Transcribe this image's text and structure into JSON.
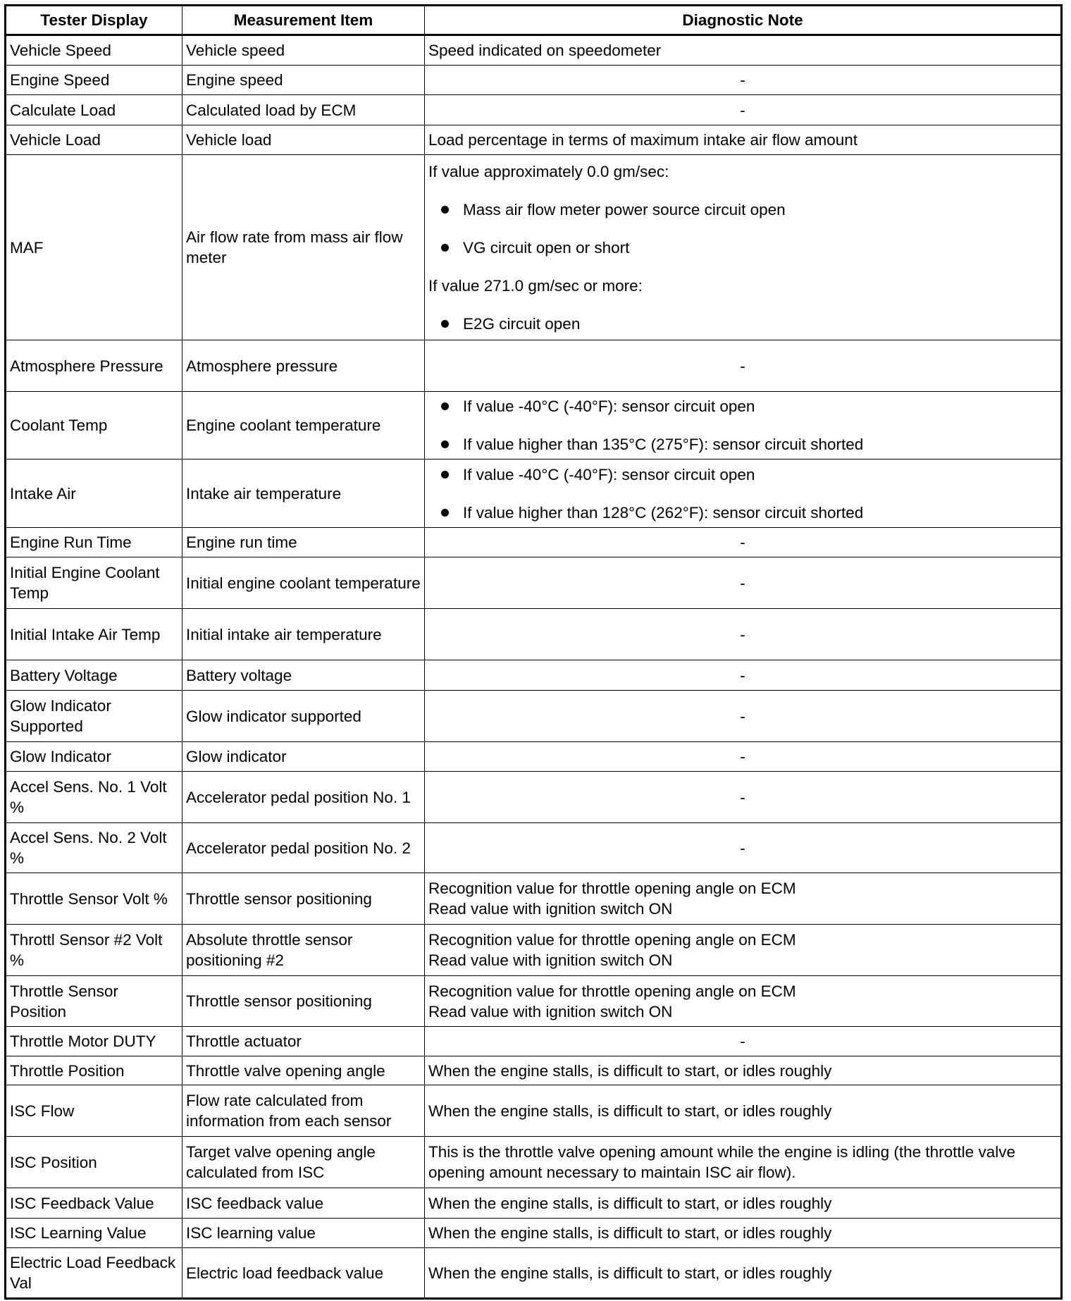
{
  "headers": [
    "Tester Display",
    "Measurement Item",
    "Diagnostic Note"
  ],
  "rows": [
    {
      "tester": "Vehicle Speed",
      "item": "Vehicle speed",
      "note": [
        "Speed indicated on speedometer"
      ]
    },
    {
      "tester": "Engine Speed",
      "item": "Engine speed",
      "note": [
        "-"
      ]
    },
    {
      "tester": "Calculate Load",
      "item": "Calculated load by ECM",
      "note": [
        "-"
      ]
    },
    {
      "tester": "Vehicle Load",
      "item": "Vehicle load",
      "note": [
        "Load percentage in terms of maximum intake air flow amount"
      ]
    },
    {
      "tester": "MAF",
      "item": "Air flow rate from mass air flow meter",
      "note": [
        {
          "text": "If value approximately 0.0 gm/sec:"
        },
        {
          "bullet": "Mass air flow meter power source circuit open"
        },
        {
          "bullet": "VG circuit open or short"
        },
        {
          "text": "If value 271.0 gm/sec or more:"
        },
        {
          "bullet": "E2G circuit open"
        }
      ]
    },
    {
      "tester": "Atmosphere Pressure",
      "item": "Atmosphere pressure",
      "note": [
        "-"
      ]
    },
    {
      "tester": "Coolant Temp",
      "item": "Engine coolant temperature",
      "note": [
        {
          "bullet": "If value -40°C (-40°F): sensor circuit open"
        },
        {
          "bullet": "If value higher than 135°C (275°F): sensor circuit shorted"
        }
      ]
    },
    {
      "tester": "Intake Air",
      "item": "Intake air temperature",
      "note": [
        {
          "bullet": "If value -40°C (-40°F): sensor circuit open"
        },
        {
          "bullet": "If value higher than 128°C (262°F): sensor circuit shorted"
        }
      ]
    },
    {
      "tester": "Engine Run Time",
      "item": "Engine run time",
      "note": [
        "-"
      ]
    },
    {
      "tester": "Initial Engine Coolant Temp",
      "item": "Initial engine coolant temperature",
      "note": [
        "-"
      ]
    },
    {
      "tester": "Initial Intake Air Temp",
      "item": "Initial intake air temperature",
      "note": [
        "-"
      ]
    },
    {
      "tester": "Battery Voltage",
      "item": "Battery voltage",
      "note": [
        "-"
      ]
    },
    {
      "tester": "Glow Indicator Supported",
      "item": "Glow indicator supported",
      "note": [
        "-"
      ]
    },
    {
      "tester": "Glow Indicator",
      "item": "Glow indicator",
      "note": [
        "-"
      ]
    },
    {
      "tester": "Accel Sens. No. 1 Volt %",
      "item": "Accelerator pedal position No. 1",
      "note": [
        "-"
      ]
    },
    {
      "tester": "Accel Sens. No. 2 Volt %",
      "item": "Accelerator pedal position No. 2",
      "note": [
        "-"
      ]
    },
    {
      "tester": "Throttle Sensor Volt %",
      "item": "Throttle sensor positioning",
      "note": [
        "Recognition value for throttle opening angle on ECM",
        "Read value with ignition switch ON"
      ]
    },
    {
      "tester": "Throttl Sensor #2 Volt %",
      "item": "Absolute throttle sensor positioning #2",
      "note": [
        "Recognition value for throttle opening angle on ECM",
        "Read value with ignition switch ON"
      ]
    },
    {
      "tester": "Throttle Sensor Position",
      "item": "Throttle sensor positioning",
      "note": [
        "Recognition value for throttle opening angle on ECM",
        "Read value with ignition switch ON"
      ]
    },
    {
      "tester": "Throttle Motor DUTY",
      "item": "Throttle actuator",
      "note": [
        "-"
      ]
    },
    {
      "tester": "Throttle Position",
      "item": "Throttle valve opening angle",
      "note": [
        "When the engine stalls, is difficult to start, or idles roughly"
      ]
    },
    {
      "tester": "ISC Flow",
      "item": "Flow rate calculated from information from each sensor",
      "note": [
        "When the engine stalls, is difficult to start, or idles roughly"
      ]
    },
    {
      "tester": "ISC Position",
      "item": "Target valve opening angle calculated from ISC",
      "note": [
        "This is the throttle valve opening amount while the engine is idling (the throttle valve opening amount necessary to maintain ISC air flow)."
      ]
    },
    {
      "tester": "ISC Feedback Value",
      "item": "ISC feedback value",
      "note": [
        "When the engine stalls, is difficult to start, or idles roughly"
      ]
    },
    {
      "tester": "ISC Learning Value",
      "item": "ISC learning value",
      "note": [
        "When the engine stalls, is difficult to start, or idles roughly"
      ]
    },
    {
      "tester": "Electric Load Feedback Val",
      "item": "Electric load feedback value",
      "note": [
        "When the engine stalls, is difficult to start, or idles roughly"
      ]
    }
  ]
}
